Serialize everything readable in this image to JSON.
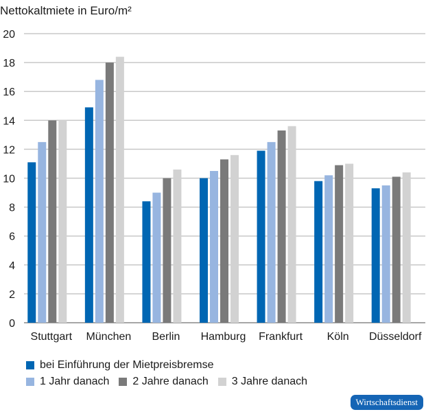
{
  "chart_data": {
    "type": "bar",
    "title": "Nettokaltmiete in Euro/m²",
    "xlabel": "",
    "ylabel": "",
    "ylim": [
      0,
      20
    ],
    "yticks": [
      0,
      2,
      4,
      6,
      8,
      10,
      12,
      14,
      16,
      18,
      20
    ],
    "grid": true,
    "legend_placement": "bottom",
    "categories": [
      "Stuttgart",
      "München",
      "Berlin",
      "Hamburg",
      "Frankfurt",
      "Köln",
      "Düsseldorf"
    ],
    "series": [
      {
        "name": "bei Einführung der Mietpreisbremse",
        "color": "#0066b3",
        "values": [
          11.1,
          14.9,
          8.4,
          10.0,
          11.9,
          9.8,
          9.3
        ]
      },
      {
        "name": "1 Jahr danach",
        "color": "#97b5e0",
        "values": [
          12.5,
          16.8,
          9.0,
          10.5,
          12.5,
          10.2,
          9.5
        ]
      },
      {
        "name": "2 Jahre danach",
        "color": "#7a7a7a",
        "values": [
          14.0,
          18.0,
          10.0,
          11.3,
          13.3,
          10.9,
          10.1
        ]
      },
      {
        "name": "3 Jahre danach",
        "color": "#d2d2d2",
        "values": [
          14.0,
          18.4,
          10.6,
          11.6,
          13.6,
          11.0,
          10.4
        ]
      }
    ]
  },
  "source_badge": "Wirtschaftsdienst"
}
